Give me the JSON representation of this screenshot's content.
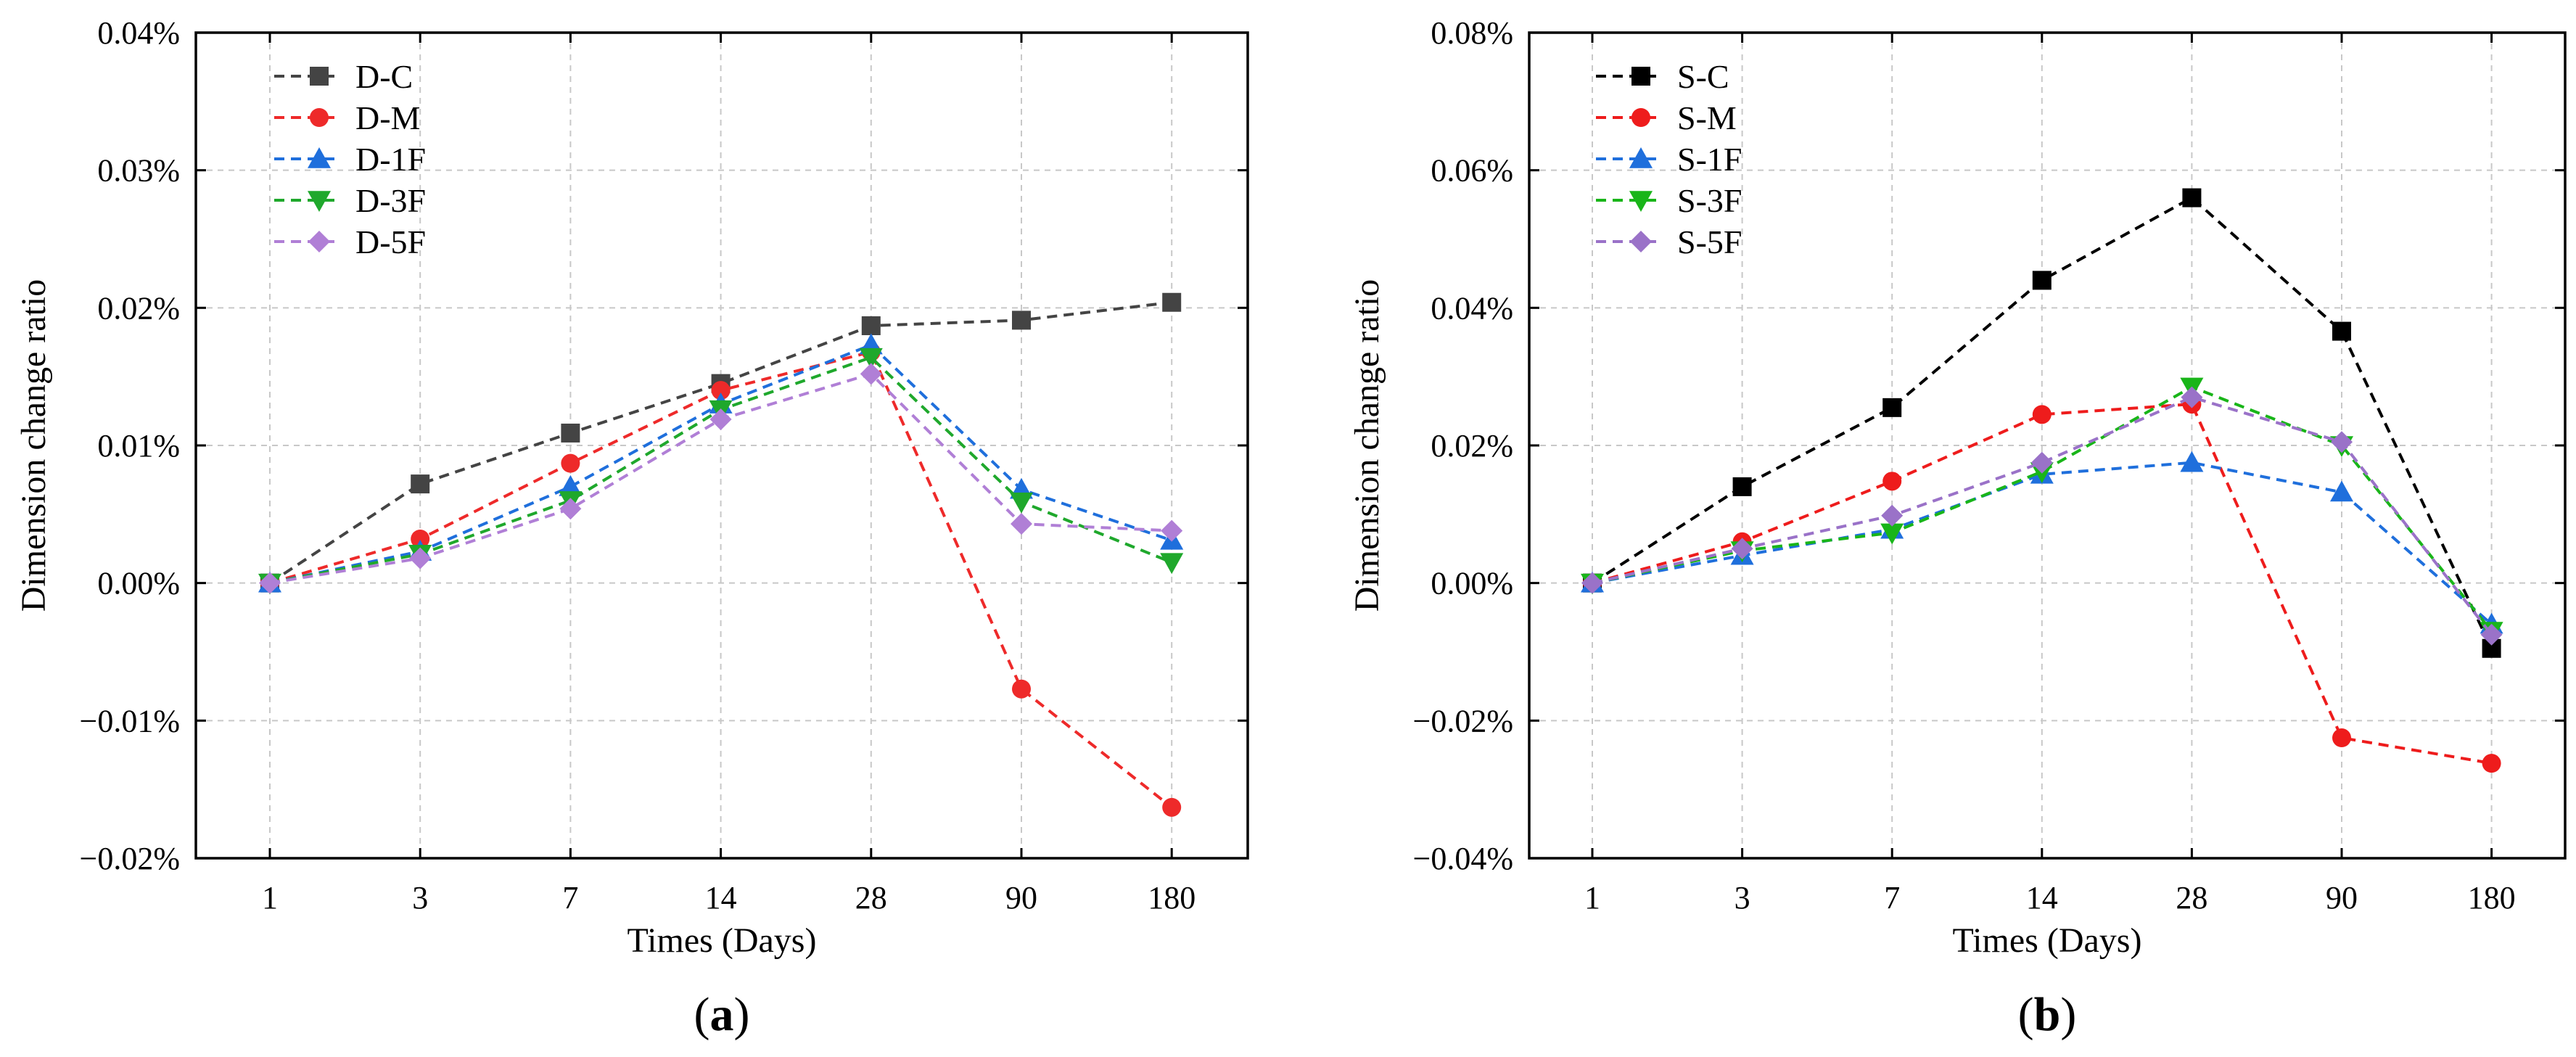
{
  "figure": {
    "panels": [
      "(a)",
      "(b)"
    ]
  },
  "chart_data": [
    {
      "type": "line",
      "panel_label": {
        "open": "(",
        "letter": "a",
        "close": ")"
      },
      "xlabel": "Times (Days)",
      "ylabel": "Dimension change ratio",
      "categories": [
        "1",
        "3",
        "7",
        "14",
        "28",
        "90",
        "180"
      ],
      "ylim": [
        -0.02,
        0.04
      ],
      "yticks": [
        -0.02,
        -0.01,
        0.0,
        0.01,
        0.02,
        0.03,
        0.04
      ],
      "ytick_labels": [
        "−0.02%",
        "−0.01%",
        "0.00%",
        "0.01%",
        "0.02%",
        "0.03%",
        "0.04%"
      ],
      "grid": true,
      "legend_position": "top-left",
      "series": [
        {
          "name": "D-C",
          "color": "#444444",
          "marker": "square",
          "values": [
            0.0,
            0.0072,
            0.0109,
            0.0145,
            0.0187,
            0.0191,
            0.0204
          ]
        },
        {
          "name": "D-M",
          "color": "#ee2a2a",
          "marker": "circle",
          "values": [
            0.0,
            0.0032,
            0.0087,
            0.014,
            0.0168,
            -0.0077,
            -0.0163
          ]
        },
        {
          "name": "D-1F",
          "color": "#1f6fdc",
          "marker": "triangle-up",
          "values": [
            0.0,
            0.0023,
            0.007,
            0.013,
            0.0173,
            0.0068,
            0.0031
          ]
        },
        {
          "name": "D-3F",
          "color": "#1fa82c",
          "marker": "triangle-down",
          "values": [
            0.0,
            0.0021,
            0.006,
            0.0126,
            0.0164,
            0.0059,
            0.0015
          ]
        },
        {
          "name": "D-5F",
          "color": "#b07fd6",
          "marker": "diamond",
          "values": [
            0.0,
            0.0018,
            0.0054,
            0.0119,
            0.0152,
            0.0043,
            0.0038
          ]
        }
      ]
    },
    {
      "type": "line",
      "panel_label": {
        "open": "(",
        "letter": "b",
        "close": ")"
      },
      "xlabel": "Times (Days)",
      "ylabel": "Dimension change ratio",
      "categories": [
        "1",
        "3",
        "7",
        "14",
        "28",
        "90",
        "180"
      ],
      "ylim": [
        -0.04,
        0.08
      ],
      "yticks": [
        -0.04,
        -0.02,
        0.0,
        0.02,
        0.04,
        0.06,
        0.08
      ],
      "ytick_labels": [
        "−0.04%",
        "−0.02%",
        "0.00%",
        "0.02%",
        "0.04%",
        "0.06%",
        "0.08%"
      ],
      "grid": true,
      "legend_position": "top-left",
      "series": [
        {
          "name": "S-C",
          "color": "#000000",
          "marker": "square",
          "values": [
            0.0,
            0.014,
            0.0255,
            0.044,
            0.056,
            0.0366,
            -0.0095
          ]
        },
        {
          "name": "S-M",
          "color": "#ee1c1c",
          "marker": "circle",
          "values": [
            0.0,
            0.006,
            0.0148,
            0.0245,
            0.026,
            -0.0225,
            -0.0262
          ]
        },
        {
          "name": "S-1F",
          "color": "#1f6fdc",
          "marker": "triangle-up",
          "values": [
            0.0,
            0.004,
            0.0078,
            0.0158,
            0.0175,
            0.0132,
            -0.006
          ]
        },
        {
          "name": "S-3F",
          "color": "#19b519",
          "marker": "triangle-down",
          "values": [
            0.0,
            0.0047,
            0.0073,
            0.0162,
            0.0285,
            0.02,
            -0.007
          ]
        },
        {
          "name": "S-5F",
          "color": "#9a72c8",
          "marker": "diamond",
          "values": [
            0.0,
            0.005,
            0.0098,
            0.0175,
            0.027,
            0.0205,
            -0.0075
          ]
        }
      ]
    }
  ]
}
